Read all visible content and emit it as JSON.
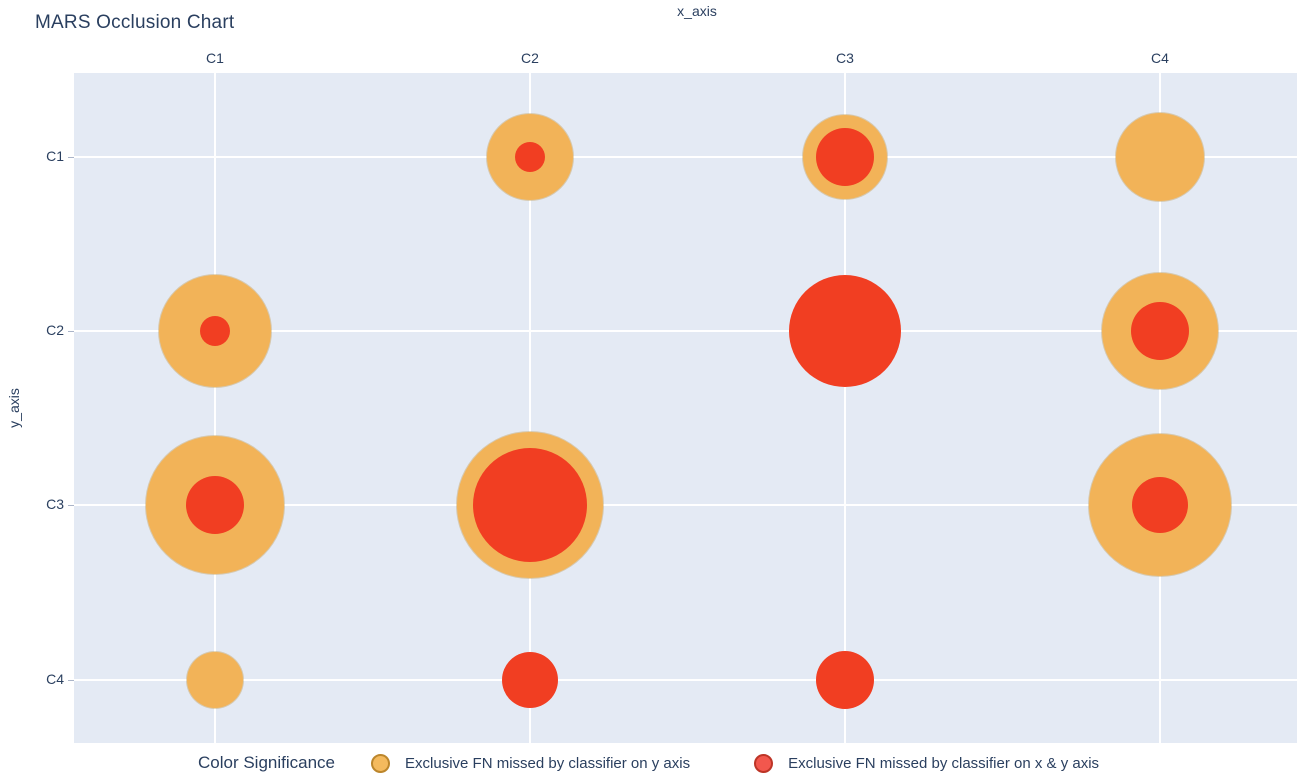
{
  "title": "MARS Occlusion Chart",
  "axes": {
    "x_title": "x_axis",
    "y_title": "y_axis",
    "x_ticks": [
      "C1",
      "C2",
      "C3",
      "C4"
    ],
    "y_ticks": [
      "C1",
      "C2",
      "C3",
      "C4"
    ]
  },
  "legend": {
    "title": "Color Significance",
    "items": [
      {
        "label": "Exclusive FN missed by classifier on y axis",
        "marker": "orange-circle-icon",
        "color": "#f4ba5e"
      },
      {
        "label": "Exclusive FN missed by classifier on x & y axis",
        "marker": "red-circle-icon",
        "color": "#f2574d"
      }
    ]
  },
  "colors": {
    "plot_background": "#e4eaf4",
    "gridline": "#ffffff",
    "outer_bubble": "#f2b358",
    "inner_bubble": "#f13e22",
    "text": "#2a3f5f"
  },
  "chart_data": {
    "type": "scatter",
    "subtype": "dual-bubble-matrix",
    "title": "MARS Occlusion Chart",
    "xlabel": "x_axis",
    "ylabel": "y_axis",
    "x_categories": [
      "C1",
      "C2",
      "C3",
      "C4"
    ],
    "y_categories": [
      "C1",
      "C2",
      "C3",
      "C4"
    ],
    "legend_position": "bottom",
    "grid": true,
    "series": [
      {
        "name": "Exclusive FN missed by classifier on y axis",
        "role": "outer",
        "color": "#f2b358"
      },
      {
        "name": "Exclusive FN missed by classifier on x & y axis",
        "role": "inner",
        "color": "#f13e22"
      }
    ],
    "points": [
      {
        "x": "C2",
        "y": "C1",
        "outer_radius_px": 43,
        "inner_radius_px": 15
      },
      {
        "x": "C3",
        "y": "C1",
        "outer_radius_px": 42,
        "inner_radius_px": 29
      },
      {
        "x": "C4",
        "y": "C1",
        "outer_radius_px": 44,
        "inner_radius_px": 0
      },
      {
        "x": "C1",
        "y": "C2",
        "outer_radius_px": 56,
        "inner_radius_px": 15
      },
      {
        "x": "C3",
        "y": "C2",
        "outer_radius_px": 0,
        "inner_radius_px": 56
      },
      {
        "x": "C4",
        "y": "C2",
        "outer_radius_px": 58,
        "inner_radius_px": 29
      },
      {
        "x": "C1",
        "y": "C3",
        "outer_radius_px": 69,
        "inner_radius_px": 29
      },
      {
        "x": "C2",
        "y": "C3",
        "outer_radius_px": 73,
        "inner_radius_px": 57
      },
      {
        "x": "C4",
        "y": "C3",
        "outer_radius_px": 71,
        "inner_radius_px": 28
      },
      {
        "x": "C1",
        "y": "C4",
        "outer_radius_px": 28,
        "inner_radius_px": 0
      },
      {
        "x": "C2",
        "y": "C4",
        "outer_radius_px": 0,
        "inner_radius_px": 28
      },
      {
        "x": "C3",
        "y": "C4",
        "outer_radius_px": 0,
        "inner_radius_px": 29
      }
    ],
    "empty_cells": [
      [
        "C1",
        "C1"
      ],
      [
        "C2",
        "C2"
      ],
      [
        "C3",
        "C3"
      ],
      [
        "C4",
        "C4"
      ]
    ]
  }
}
